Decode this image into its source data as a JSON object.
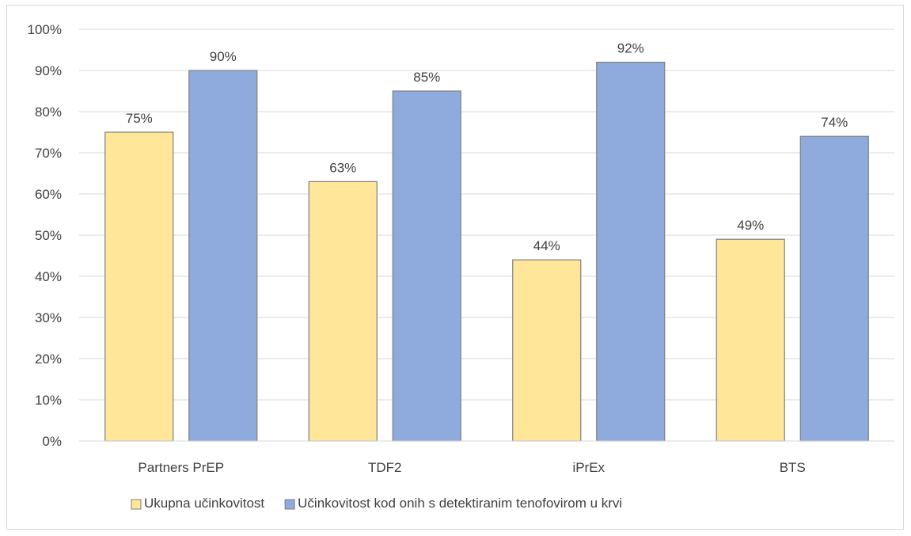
{
  "chart_data": {
    "type": "bar",
    "title": "",
    "xlabel": "",
    "ylabel": "",
    "categories": [
      "Partners PrEP",
      "TDF2",
      "iPrEx",
      "BTS"
    ],
    "series": [
      {
        "name": "Ukupna učinkovitost",
        "values": [
          75,
          63,
          44,
          49
        ],
        "labels": [
          "75%",
          "63%",
          "44%",
          "49%"
        ],
        "color": "#ffe699"
      },
      {
        "name": "Učinkovitost kod onih s detektiranim tenofovirom u krvi",
        "values": [
          90,
          85,
          92,
          74
        ],
        "labels": [
          "90%",
          "85%",
          "92%",
          "74%"
        ],
        "color": "#8faadc"
      }
    ],
    "ylim": [
      0,
      100
    ],
    "yticks": [
      "0%",
      "10%",
      "20%",
      "30%",
      "40%",
      "50%",
      "60%",
      "70%",
      "80%",
      "90%",
      "100%"
    ],
    "grid": true,
    "legend_position": "bottom",
    "bar_outline_color": "#7f7f7f",
    "gridline_color": "#d9d9d9"
  }
}
